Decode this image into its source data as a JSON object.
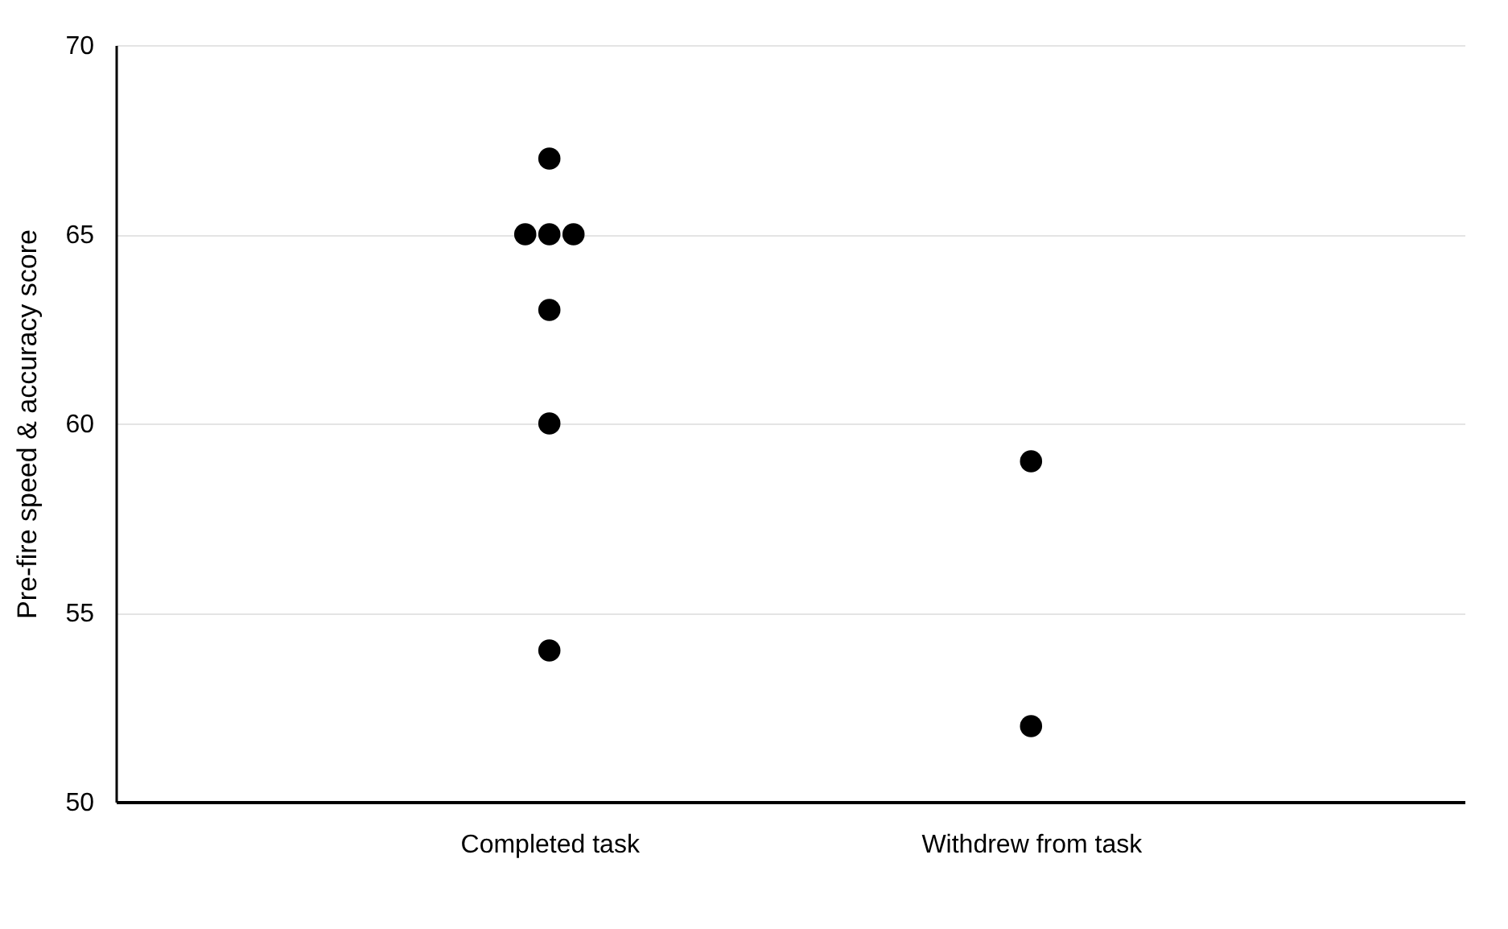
{
  "chart_data": {
    "type": "scatter",
    "categories": [
      "Completed  task",
      "Withdrew from task"
    ],
    "ylabel": "Pre-fire speed & accuracy score",
    "ylim": [
      50,
      70
    ],
    "yticks": [
      50,
      55,
      60,
      65,
      70
    ],
    "grid": "y",
    "marker": "circle",
    "series": [
      {
        "color": "#000000",
        "x": [
          "Completed  task",
          "Completed  task",
          "Completed  task",
          "Completed  task",
          "Completed  task",
          "Completed  task",
          "Completed  task",
          "Withdrew from task",
          "Withdrew from task"
        ],
        "values": [
          67,
          65,
          65,
          65,
          63,
          60,
          54,
          59,
          52
        ]
      }
    ]
  }
}
